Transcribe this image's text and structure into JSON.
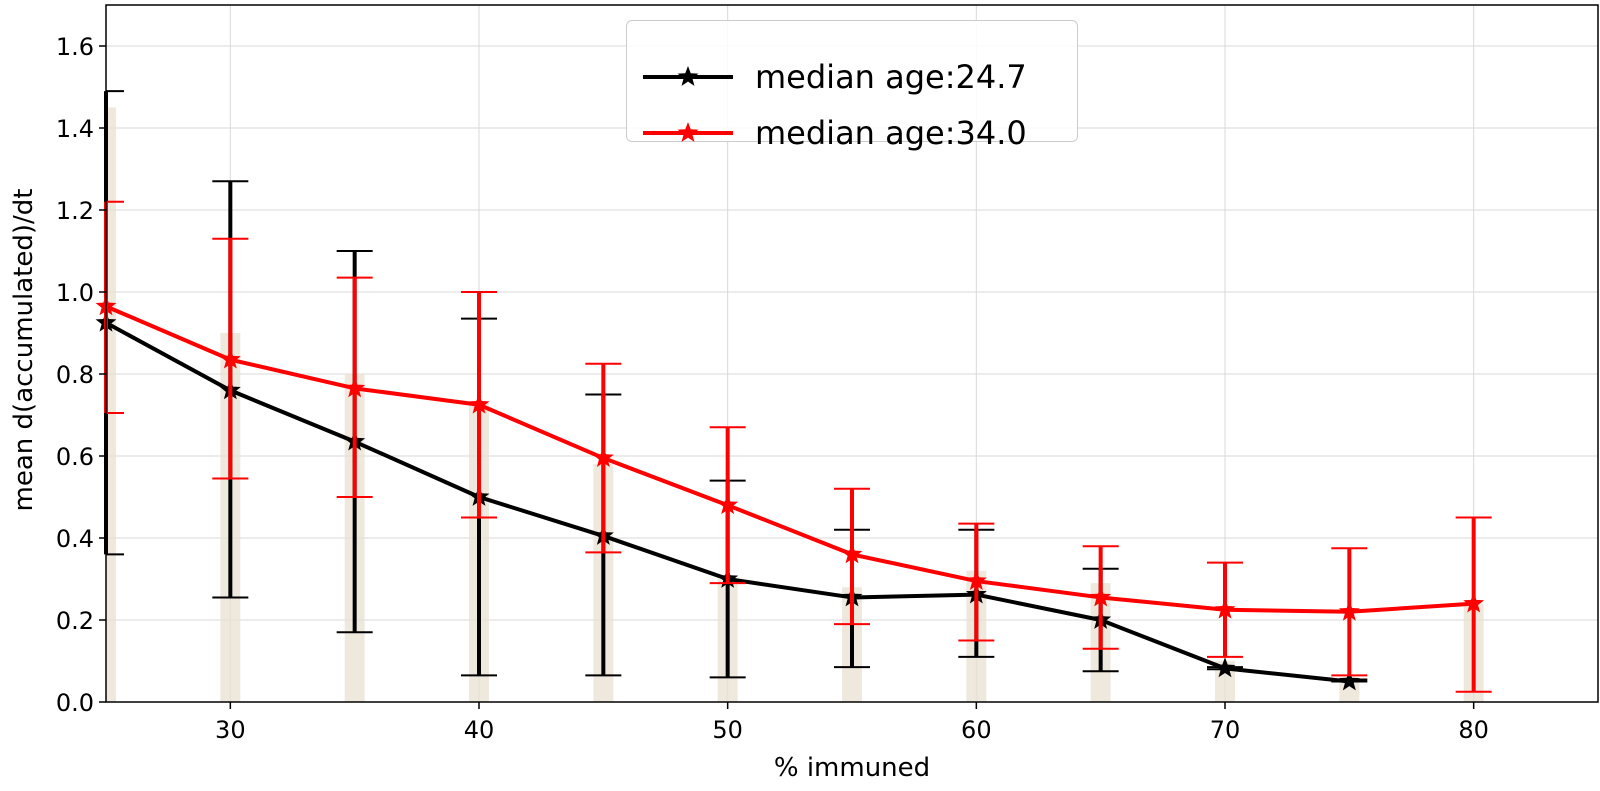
{
  "chart_data": {
    "type": "line",
    "xlabel": "% immuned",
    "ylabel": "mean d(accumulated)/dt",
    "xlim": [
      25,
      85
    ],
    "ylim": [
      0,
      1.7
    ],
    "xticks": [
      30,
      40,
      50,
      60,
      70,
      80
    ],
    "yticks": [
      0.0,
      0.2,
      0.4,
      0.6,
      0.8,
      1.0,
      1.2,
      1.4,
      1.6
    ],
    "xtick_labels": [
      "30",
      "40",
      "50",
      "60",
      "70",
      "80"
    ],
    "ytick_labels": [
      "0.0",
      "0.2",
      "0.4",
      "0.6",
      "0.8",
      "1.0",
      "1.2",
      "1.4",
      "1.6"
    ],
    "grid": true,
    "legend_position": "top-center",
    "marker": "star",
    "series": [
      {
        "name": "median age:24.7",
        "color": "#000000",
        "x": [
          25,
          30,
          35,
          40,
          45,
          50,
          55,
          60,
          65,
          70,
          75
        ],
        "y": [
          0.925,
          0.76,
          0.635,
          0.5,
          0.405,
          0.3,
          0.255,
          0.262,
          0.2,
          0.082,
          0.05
        ],
        "err_low": [
          0.36,
          0.255,
          0.17,
          0.065,
          0.065,
          0.06,
          0.085,
          0.11,
          0.075,
          0.08,
          0.05
        ],
        "err_high": [
          1.49,
          1.27,
          1.1,
          0.935,
          0.75,
          0.54,
          0.42,
          0.42,
          0.325,
          0.085,
          0.055
        ]
      },
      {
        "name": "median age:34.0",
        "color": "#ff0000",
        "x": [
          25,
          30,
          35,
          40,
          45,
          50,
          55,
          60,
          65,
          70,
          75,
          80
        ],
        "y": [
          0.965,
          0.835,
          0.765,
          0.725,
          0.595,
          0.48,
          0.36,
          0.295,
          0.255,
          0.225,
          0.22,
          0.24
        ],
        "err_low": [
          0.705,
          0.545,
          0.5,
          0.45,
          0.365,
          0.29,
          0.19,
          0.15,
          0.13,
          0.11,
          0.065,
          0.025
        ],
        "err_high": [
          1.22,
          1.13,
          1.035,
          1.0,
          0.825,
          0.67,
          0.52,
          0.435,
          0.38,
          0.34,
          0.375,
          0.45
        ]
      }
    ],
    "background_bars": {
      "color": "#e8e0d2",
      "x": [
        25,
        30,
        35,
        40,
        45,
        50,
        55,
        60,
        65,
        70,
        75,
        80
      ],
      "height": [
        1.45,
        0.9,
        0.8,
        0.73,
        0.58,
        0.3,
        0.28,
        0.32,
        0.29,
        0.1,
        0.06,
        0.24
      ]
    }
  }
}
